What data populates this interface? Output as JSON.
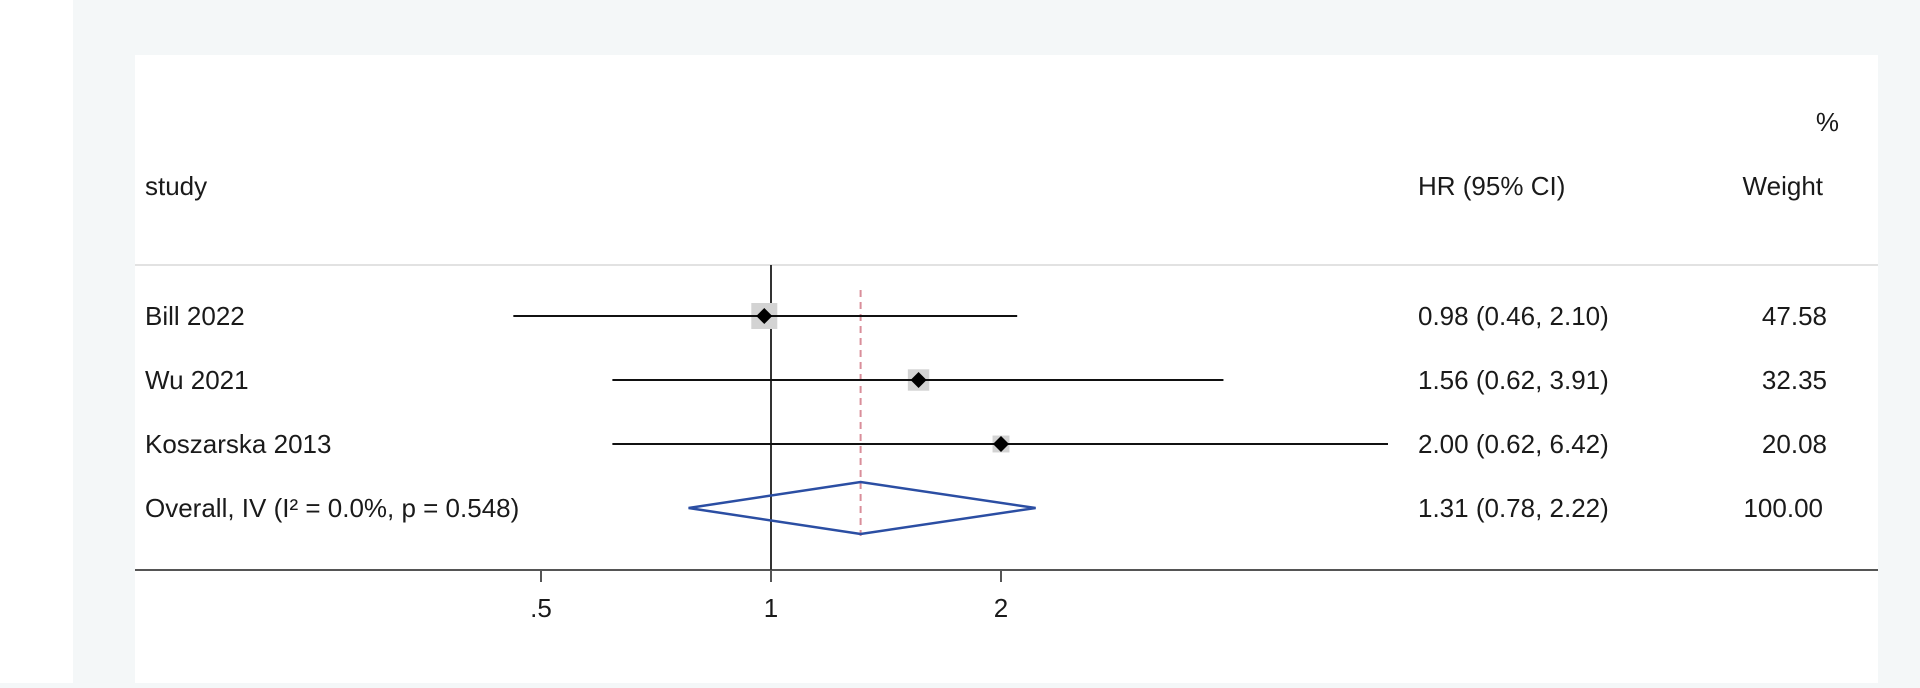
{
  "chart_data": {
    "type": "forest",
    "scale": "log",
    "xticks": [
      {
        "value": 0.5,
        "label": ".5"
      },
      {
        "value": 1,
        "label": "1"
      },
      {
        "value": 2,
        "label": "2"
      }
    ],
    "null_line": 1,
    "overall_line": 1.31,
    "header": {
      "study": "study",
      "effect": "HR (95% CI)",
      "weight_top": "%",
      "weight": "Weight"
    },
    "studies": [
      {
        "label": "Bill 2022",
        "hr": 0.98,
        "lo": 0.46,
        "hi": 2.1,
        "text": "0.98 (0.46, 2.10)",
        "weight": 47.58,
        "weight_text": "47.58"
      },
      {
        "label": "Wu 2021",
        "hr": 1.56,
        "lo": 0.62,
        "hi": 3.91,
        "text": "1.56 (0.62, 3.91)",
        "weight": 32.35,
        "weight_text": "32.35"
      },
      {
        "label": "Koszarska 2013",
        "hr": 2.0,
        "lo": 0.62,
        "hi": 6.42,
        "text": "2.00 (0.62, 6.42)",
        "weight": 20.08,
        "weight_text": "20.08"
      }
    ],
    "overall": {
      "label": "Overall, IV (I² = 0.0%, p = 0.548)",
      "hr": 1.31,
      "lo": 0.78,
      "hi": 2.22,
      "text": "1.31 (0.78, 2.22)",
      "weight_text": "100.00"
    },
    "colors": {
      "diamond": "#2b4ea3",
      "overall_line": "#d98e9a",
      "marker": "#000000",
      "weight_box": "#d3d3d3",
      "null_line": "#333333"
    }
  }
}
